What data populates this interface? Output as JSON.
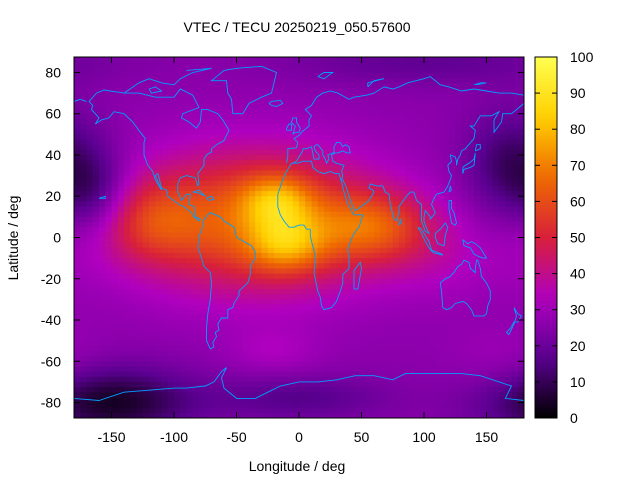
{
  "chart_data": {
    "type": "heatmap",
    "title": "VTEC / TECU 20250219_050.57600",
    "xlabel": "Longitude / deg",
    "ylabel": "Latitude / deg",
    "xlim": [
      -180,
      180
    ],
    "ylim": [
      -87.5,
      87.5
    ],
    "x_ticks": [
      -150,
      -100,
      -50,
      0,
      50,
      100,
      150
    ],
    "y_ticks": [
      -80,
      -60,
      -40,
      -20,
      0,
      20,
      40,
      60,
      80
    ],
    "colorbar": {
      "min": 0,
      "max": 100,
      "ticks": [
        0,
        10,
        20,
        30,
        40,
        50,
        60,
        70,
        80,
        90,
        100
      ],
      "colormap": [
        "#000000",
        "#5a0090",
        "#b000c0",
        "#d8203a",
        "#ef6a00",
        "#ffd000",
        "#ffff50"
      ]
    },
    "features": [
      {
        "name": "background",
        "value": 26
      },
      {
        "name": "peak-atlantic-south",
        "lon": -10,
        "lat": -3,
        "value": 95
      },
      {
        "name": "peak-africa-north",
        "lon": -18,
        "lat": 18,
        "value": 92
      },
      {
        "name": "crest-east",
        "lon": 60,
        "lat": 5,
        "value": 60
      },
      {
        "name": "crest-pacific",
        "lon": -120,
        "lat": 8,
        "value": 48
      },
      {
        "name": "low-north-pacific",
        "lon": -160,
        "lat": 20,
        "value": 12
      },
      {
        "name": "low-south-pacific",
        "lon": -150,
        "lat": -80,
        "value": 5
      },
      {
        "name": "low-antarctic",
        "lon": 0,
        "lat": -78,
        "value": 12
      }
    ],
    "map_overlay": "world-coastlines",
    "coastline_color": "#00a0ff"
  }
}
